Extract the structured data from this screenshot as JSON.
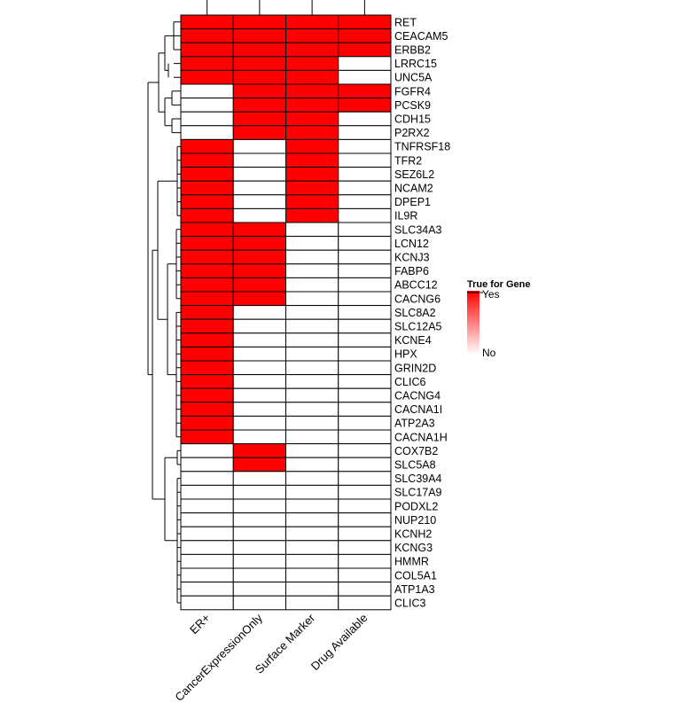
{
  "chart_data": {
    "type": "heatmap",
    "columns": [
      "ER+",
      "CancerExpressionOnly",
      "Surface Marker",
      "Drug Available"
    ],
    "rows": [
      "RET",
      "CEACAM5",
      "ERBB2",
      "LRRC15",
      "UNC5A",
      "FGFR4",
      "PCSK9",
      "CDH15",
      "P2RX2",
      "TNFRSF18",
      "TFR2",
      "SEZ6L2",
      "NCAM2",
      "DPEP1",
      "IL9R",
      "SLC34A3",
      "LCN12",
      "KCNJ3",
      "FABP6",
      "ABCC12",
      "CACNG6",
      "SLC8A2",
      "SLC12A5",
      "KCNE4",
      "HPX",
      "GRIN2D",
      "CLIC6",
      "CACNG4",
      "CACNA1I",
      "ATP2A3",
      "CACNA1H",
      "COX7B2",
      "SLC5A8",
      "SLC39A4",
      "SLC17A9",
      "PODXL2",
      "NUP210",
      "KCNH2",
      "KCNG3",
      "HMMR",
      "COL5A1",
      "ATP1A3",
      "CLIC3"
    ],
    "values": [
      [
        1,
        1,
        1,
        1
      ],
      [
        1,
        1,
        1,
        1
      ],
      [
        1,
        1,
        1,
        1
      ],
      [
        1,
        1,
        1,
        0
      ],
      [
        1,
        1,
        1,
        0
      ],
      [
        0,
        1,
        1,
        1
      ],
      [
        0,
        1,
        1,
        1
      ],
      [
        0,
        1,
        1,
        0
      ],
      [
        0,
        1,
        1,
        0
      ],
      [
        1,
        0,
        1,
        0
      ],
      [
        1,
        0,
        1,
        0
      ],
      [
        1,
        0,
        1,
        0
      ],
      [
        1,
        0,
        1,
        0
      ],
      [
        1,
        0,
        1,
        0
      ],
      [
        1,
        0,
        1,
        0
      ],
      [
        1,
        1,
        0,
        0
      ],
      [
        1,
        1,
        0,
        0
      ],
      [
        1,
        1,
        0,
        0
      ],
      [
        1,
        1,
        0,
        0
      ],
      [
        1,
        1,
        0,
        0
      ],
      [
        1,
        1,
        0,
        0
      ],
      [
        1,
        0,
        0,
        0
      ],
      [
        1,
        0,
        0,
        0
      ],
      [
        1,
        0,
        0,
        0
      ],
      [
        1,
        0,
        0,
        0
      ],
      [
        1,
        0,
        0,
        0
      ],
      [
        1,
        0,
        0,
        0
      ],
      [
        1,
        0,
        0,
        0
      ],
      [
        1,
        0,
        0,
        0
      ],
      [
        1,
        0,
        0,
        0
      ],
      [
        1,
        0,
        0,
        0
      ],
      [
        0,
        1,
        0,
        0
      ],
      [
        0,
        1,
        0,
        0
      ],
      [
        0,
        0,
        0,
        0
      ],
      [
        0,
        0,
        0,
        0
      ],
      [
        0,
        0,
        0,
        0
      ],
      [
        0,
        0,
        0,
        0
      ],
      [
        0,
        0,
        0,
        0
      ],
      [
        0,
        0,
        0,
        0
      ],
      [
        0,
        0,
        0,
        0
      ],
      [
        0,
        0,
        0,
        0
      ],
      [
        0,
        0,
        0,
        0
      ],
      [
        0,
        0,
        0,
        0
      ]
    ],
    "legend": {
      "title": "True for Gene",
      "high_label": "Yes",
      "low_label": "No",
      "placement": "right"
    },
    "colors": {
      "true": "#ff0000",
      "false": "#ffffff",
      "border": "#000000",
      "dendrogram": "#000000"
    }
  }
}
